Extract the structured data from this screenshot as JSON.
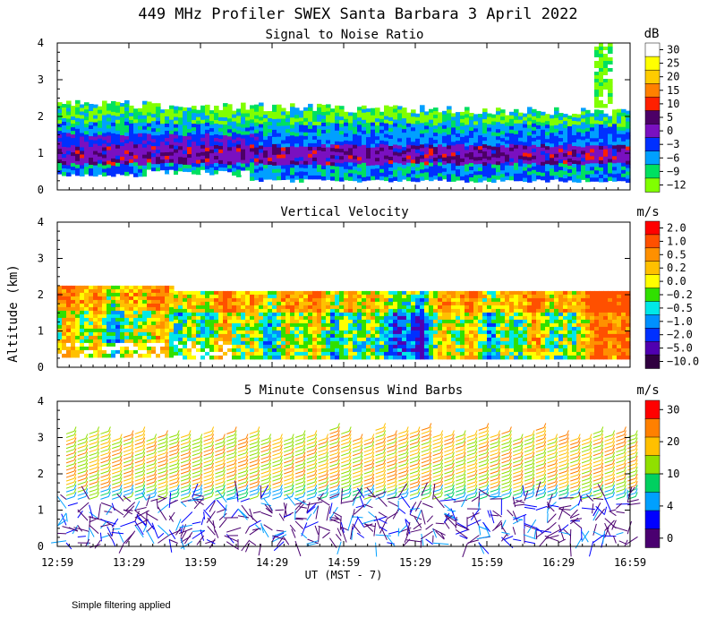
{
  "figure": {
    "title": "449 MHz Profiler SWEX Santa Barbara  3 April 2022",
    "ylabel": "Altitude (km)",
    "xlabel": "UT  (MST - 7)",
    "footnote": "Simple filtering applied"
  },
  "chart_data": [
    {
      "type": "heatmap",
      "title": "Signal to Noise Ratio",
      "colorbar_unit": "dB",
      "colorbar_ticks": [
        "30",
        "25",
        "20",
        "15",
        "10",
        "5",
        "0",
        "−3",
        "−6",
        "−9",
        "−12"
      ],
      "colorbar_colors": [
        "#ffffff",
        "#ffff00",
        "#ffcc00",
        "#ff8000",
        "#ff2000",
        "#4c0066",
        "#7a10c0",
        "#0030ff",
        "#00a0ff",
        "#00e060",
        "#80ff00"
      ],
      "x_ticks": [
        "12:59",
        "13:29",
        "13:59",
        "14:29",
        "14:59",
        "15:29",
        "15:59",
        "16:29",
        "16:59"
      ],
      "y_ticks": [
        "0",
        "1",
        "2",
        "3",
        "4"
      ],
      "ylim": [
        0,
        4
      ],
      "xlim_hours": [
        12.983,
        16.983
      ]
    },
    {
      "type": "heatmap",
      "title": "Vertical Velocity",
      "colorbar_unit": "m/s",
      "colorbar_ticks": [
        "2.0",
        "1.0",
        "0.5",
        "0.2",
        "0.0",
        "−0.2",
        "−0.5",
        "−1.0",
        "−2.0",
        "−5.0",
        "−10.0"
      ],
      "colorbar_colors": [
        "#ff0000",
        "#ff5000",
        "#ff9000",
        "#ffc000",
        "#ffff00",
        "#30e000",
        "#00e8e8",
        "#0090ff",
        "#0030ff",
        "#5000b0",
        "#300040"
      ],
      "y_ticks": [
        "0",
        "1",
        "2",
        "3",
        "4"
      ],
      "ylim": [
        0,
        4
      ]
    },
    {
      "type": "scatter",
      "title": "5 Minute Consensus Wind Barbs",
      "colorbar_unit": "m/s",
      "colorbar_ticks": [
        "30",
        "20",
        "10",
        "4",
        "0"
      ],
      "colorbar_colors": [
        "#ff0000",
        "#ff8000",
        "#ffc000",
        "#90e000",
        "#00d060",
        "#00a0ff",
        "#0000ff",
        "#4a0070"
      ],
      "y_ticks": [
        "0",
        "1",
        "2",
        "3",
        "4"
      ],
      "ylim": [
        0,
        4
      ]
    }
  ]
}
